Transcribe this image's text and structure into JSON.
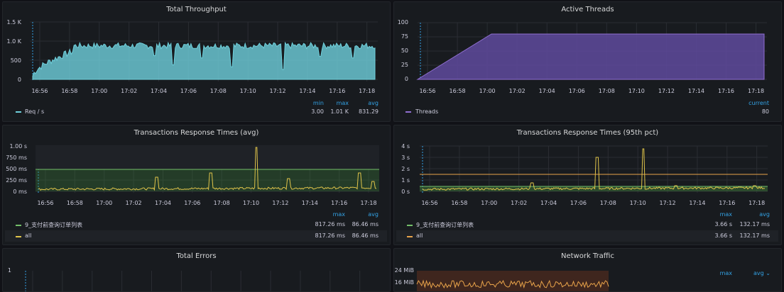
{
  "panels": {
    "throughput": {
      "title": "Total Throughput"
    },
    "threads": {
      "title": "Active Threads"
    },
    "resp_avg": {
      "title": "Transactions Response Times (avg)"
    },
    "resp_95": {
      "title": "Transactions Response Times (95th pct)"
    },
    "errors": {
      "title": "Total Errors"
    },
    "network": {
      "title": "Network Traffic"
    }
  },
  "x_ticks": [
    "16:56",
    "16:58",
    "17:00",
    "17:02",
    "17:04",
    "17:06",
    "17:08",
    "17:10",
    "17:12",
    "17:14",
    "17:16",
    "17:18"
  ],
  "legend_headers": {
    "min": "min",
    "max": "max",
    "avg": "avg",
    "current": "current",
    "avg_dropdown": "avg ⌄"
  },
  "throughput_legend": {
    "name": "Req / s",
    "min": "3.00",
    "max": "1.01 K",
    "avg": "831.29"
  },
  "threads_legend": {
    "name": "Threads",
    "current": "80"
  },
  "resp_avg_legend": [
    {
      "name": "9_支付前查询订单列表",
      "max": "817.26 ms",
      "avg": "86.46 ms"
    },
    {
      "name": "all",
      "max": "817.26 ms",
      "avg": "86.46 ms"
    }
  ],
  "resp_95_legend": [
    {
      "name": "9_支付前查询订单列表",
      "max": "3.66 s",
      "avg": "132.17 ms"
    },
    {
      "name": "all",
      "max": "3.66 s",
      "avg": "132.17 ms"
    }
  ],
  "y_ticks": {
    "throughput": [
      "1.5 K",
      "1.0 K",
      "500",
      "0"
    ],
    "threads": [
      "100",
      "75",
      "50",
      "25",
      "0"
    ],
    "resp_avg": [
      "1.00 s",
      "750 ms",
      "500 ms",
      "250 ms",
      "0 ms"
    ],
    "resp_95": [
      "4 s",
      "3 s",
      "2 s",
      "1 s",
      "0 s"
    ],
    "errors": [
      "1"
    ],
    "network": [
      "24 MiB",
      "16 MiB"
    ]
  },
  "colors": {
    "teal": "#6fd0dc",
    "purple": "#8f6fd1",
    "yellow": "#e0c44a",
    "orange": "#e8a34a",
    "green": "#73bf69"
  },
  "chart_data": [
    {
      "type": "area",
      "title": "Total Throughput",
      "series": [
        {
          "name": "Req / s",
          "x": [
            "16:55:20",
            "16:56",
            "16:57",
            "16:58",
            "17:00",
            "17:02",
            "17:04",
            "17:06",
            "17:08",
            "17:10",
            "17:12",
            "17:14",
            "17:16",
            "17:18",
            "17:18:45"
          ],
          "values": [
            0,
            650,
            870,
            900,
            880,
            890,
            870,
            880,
            860,
            900,
            880,
            890,
            890,
            890,
            880
          ]
        }
      ],
      "ylim": [
        0,
        1500
      ]
    },
    {
      "type": "area",
      "title": "Active Threads",
      "series": [
        {
          "name": "Threads",
          "x": [
            "16:55:20",
            "17:00:20",
            "17:18:45"
          ],
          "values": [
            0,
            80,
            80
          ]
        }
      ],
      "ylim": [
        0,
        100
      ]
    },
    {
      "type": "line",
      "title": "Transactions Response Times (avg)",
      "series": [
        {
          "name": "9_支付前查询订单列表"
        },
        {
          "name": "all"
        }
      ],
      "ylim": [
        0,
        1000
      ]
    },
    {
      "type": "line",
      "title": "Transactions Response Times (95th pct)",
      "series": [
        {
          "name": "9_支付前查询订单列表"
        },
        {
          "name": "all"
        }
      ],
      "ylim": [
        0,
        4000
      ]
    }
  ]
}
